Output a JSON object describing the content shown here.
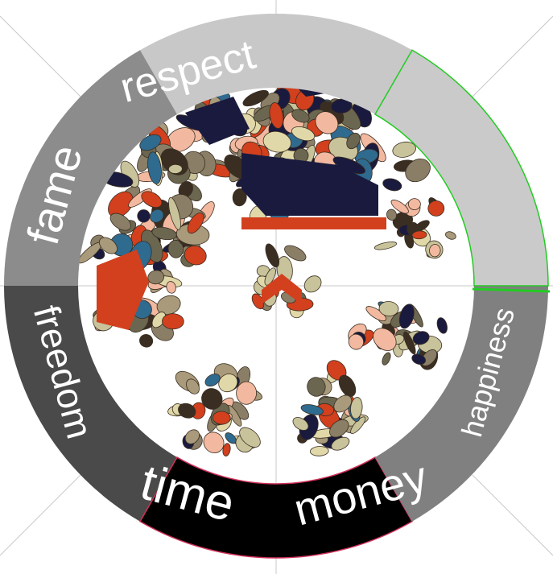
{
  "wheel": {
    "segments": [
      {
        "key": "respect",
        "label": "respect",
        "color": "#c8c8c8"
      },
      {
        "key": "fame",
        "label": "fame",
        "color": "#8c8c8c"
      },
      {
        "key": "freedom",
        "label": "freedom",
        "color": "#4a4a4a"
      },
      {
        "key": "time",
        "label": "time",
        "color": "#000000",
        "accent": "#d0305a"
      },
      {
        "key": "money",
        "label": "money",
        "color": "#808080"
      },
      {
        "key": "happiness",
        "label": "happiness",
        "color": "#cacaca",
        "accent": "#22cc22"
      }
    ]
  },
  "artwork": {
    "palette": [
      "#1a1a3e",
      "#d2401e",
      "#6b6650",
      "#c8c39a",
      "#a89a7a",
      "#3a2e22",
      "#2f6a8f",
      "#f2b9a0",
      "#e0d8a8",
      "#8a7f66"
    ]
  }
}
